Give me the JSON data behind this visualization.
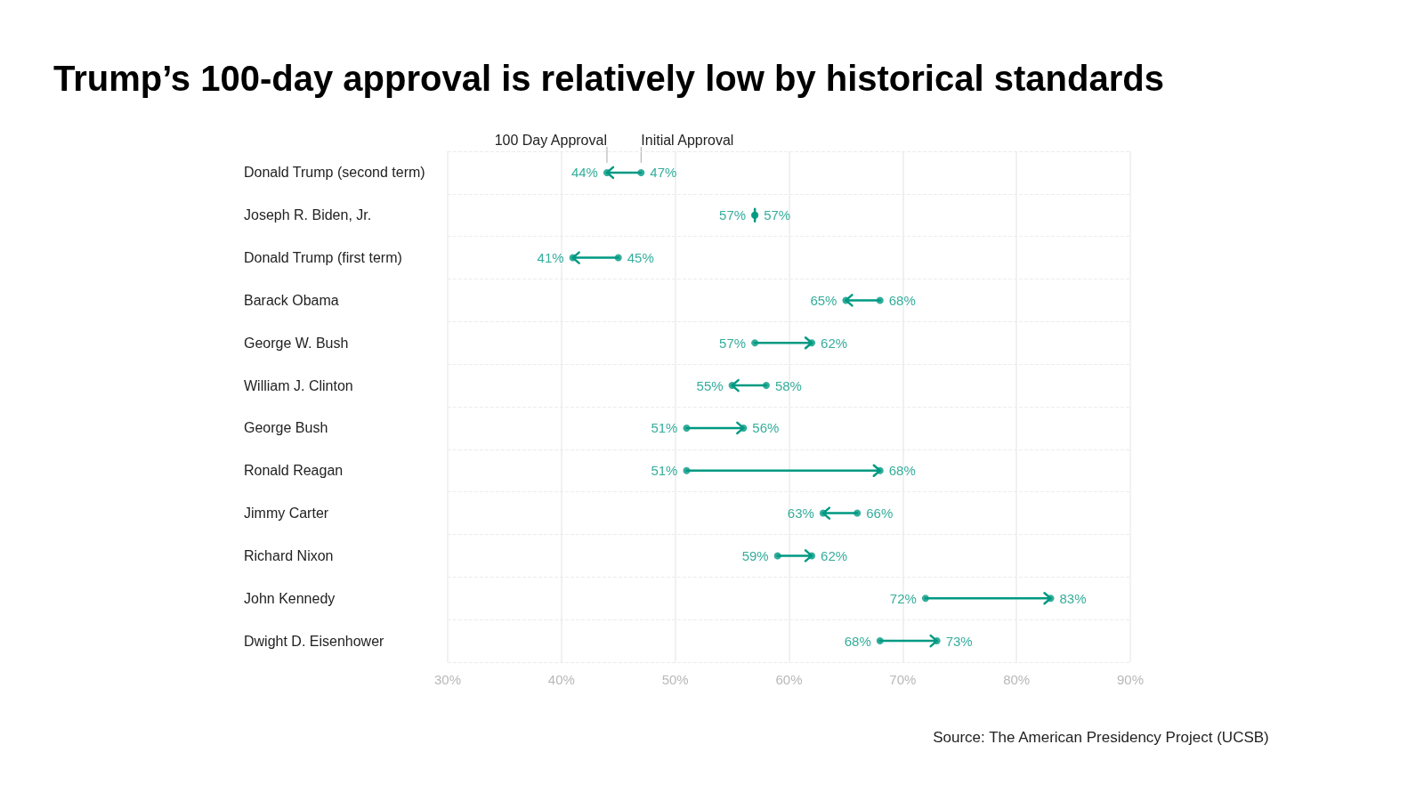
{
  "chart_data": {
    "type": "scatter",
    "title": "Trump’s 100-day approval is relatively low by historical standards",
    "orientation": "horizontal",
    "categories": [
      "Donald Trump (second term)",
      "Joseph R. Biden, Jr.",
      "Donald Trump (first term)",
      "Barack Obama",
      "George W. Bush",
      "William J. Clinton",
      "George Bush",
      "Ronald Reagan",
      "Jimmy Carter",
      "Richard Nixon",
      "John Kennedy",
      "Dwight D. Eisenhower"
    ],
    "series": [
      {
        "name": "Initial Approval",
        "color": "#009982",
        "values": [
          47,
          57,
          45,
          68,
          57,
          58,
          51,
          51,
          66,
          59,
          72,
          68
        ],
        "value_labels": [
          "47%",
          "57%",
          "45%",
          "68%",
          "57%",
          "58%",
          "51%",
          "51%",
          "66%",
          "59%",
          "72%",
          "68%"
        ]
      },
      {
        "name": "100 Day Approval",
        "color": "#009982",
        "values": [
          44,
          57,
          41,
          65,
          62,
          55,
          56,
          68,
          63,
          62,
          83,
          73
        ],
        "value_labels": [
          "44%",
          "57%",
          "41%",
          "65%",
          "62%",
          "55%",
          "56%",
          "68%",
          "63%",
          "62%",
          "83%",
          "73%"
        ]
      }
    ],
    "xlim": [
      30,
      90
    ],
    "xticks": [
      {
        "value": 30,
        "label": "30%"
      },
      {
        "value": 40,
        "label": "40%"
      },
      {
        "value": 50,
        "label": "50%"
      },
      {
        "value": 60,
        "label": "60%"
      },
      {
        "value": 70,
        "label": "70%"
      },
      {
        "value": 80,
        "label": "80%"
      },
      {
        "value": 90,
        "label": "90%"
      }
    ],
    "grid": true,
    "marker": "circle",
    "legend": false,
    "annotations": [
      "Source: The American Presidency Project (UCSB)"
    ]
  }
}
